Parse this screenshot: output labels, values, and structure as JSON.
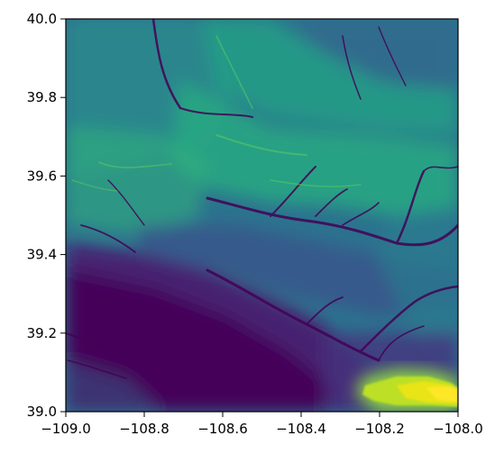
{
  "chart_data": {
    "type": "heatmap",
    "subject": "elevation raster",
    "colormap": "viridis",
    "xlim": [
      -109.0,
      -108.0
    ],
    "ylim": [
      39.0,
      40.0
    ],
    "x_ticks": [
      -109.0,
      -108.8,
      -108.6,
      -108.4,
      -108.2,
      -108.0
    ],
    "x_tick_labels": [
      "−109.0",
      "−108.8",
      "−108.6",
      "−108.4",
      "−108.2",
      "−108.0"
    ],
    "y_ticks": [
      39.0,
      39.2,
      39.4,
      39.6,
      39.8,
      40.0
    ],
    "y_tick_labels": [
      "39.0",
      "39.2",
      "39.4",
      "39.6",
      "39.8",
      "40.0"
    ],
    "grid": false,
    "title": "",
    "xlabel": "",
    "ylabel": ""
  },
  "colors": {
    "c0": "#440154",
    "c1": "#472d7b",
    "c2": "#3b528b",
    "c3": "#2c728e",
    "c4": "#21918c",
    "c5": "#28ae80",
    "c6": "#5ec962",
    "c7": "#addc30",
    "c8": "#fde725"
  }
}
